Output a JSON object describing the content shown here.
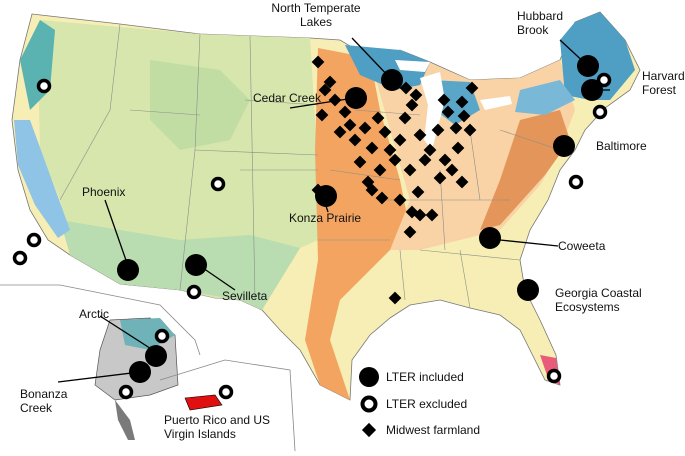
{
  "sites": [
    {
      "lines": [
        "North Temperate",
        "Lakes"
      ]
    },
    {
      "lines": [
        "Hubbard",
        "Brook"
      ]
    },
    {
      "lines": [
        "Harvard",
        "Forest"
      ]
    },
    {
      "lines": [
        "Cedar Creek"
      ]
    },
    {
      "lines": [
        "Baltimore"
      ]
    },
    {
      "lines": [
        "Phoenix"
      ]
    },
    {
      "lines": [
        "Konza Prairie"
      ]
    },
    {
      "lines": [
        "Coweeta"
      ]
    },
    {
      "lines": [
        "Sevilleta"
      ]
    },
    {
      "lines": [
        "Georgia Coastal",
        "Ecosystems"
      ]
    },
    {
      "lines": [
        "Arctic"
      ]
    },
    {
      "lines": [
        "Bonanza",
        "Creek"
      ]
    },
    {
      "lines": [
        "Puerto Rico and US",
        "Virgin Islands"
      ]
    }
  ],
  "legend": [
    "LTER included",
    "LTER excluded",
    "Midwest farmland"
  ]
}
